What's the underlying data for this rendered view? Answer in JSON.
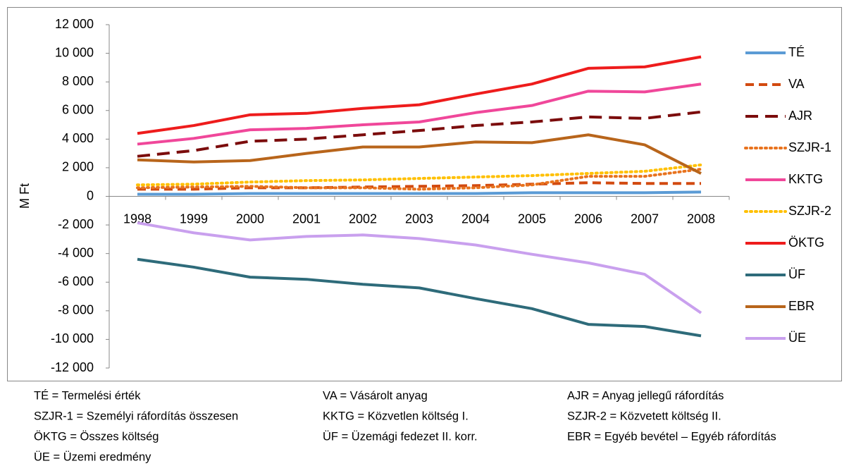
{
  "chart_data": {
    "type": "line",
    "y_label": "M Ft",
    "categories": [
      "1998",
      "1999",
      "2000",
      "2001",
      "2002",
      "2003",
      "2004",
      "2005",
      "2006",
      "2007",
      "2008"
    ],
    "ylim": [
      -12000,
      12000
    ],
    "yticks": [
      {
        "value": 12000,
        "label": "12 000"
      },
      {
        "value": 10000,
        "label": "10 000"
      },
      {
        "value": 8000,
        "label": "8 000"
      },
      {
        "value": 6000,
        "label": "6 000"
      },
      {
        "value": 4000,
        "label": "4 000"
      },
      {
        "value": 2000,
        "label": "2 000"
      },
      0,
      {
        "value": -2000,
        "label": "-2 000"
      },
      {
        "value": -4000,
        "label": "-4 000"
      },
      {
        "value": -6000,
        "label": "-6 000"
      },
      {
        "value": -8000,
        "label": "-8 000"
      },
      {
        "value": -10000,
        "label": "-10 000"
      },
      {
        "value": -12000,
        "label": "-12 000"
      }
    ],
    "grid": false,
    "legend": "right",
    "series": [
      {
        "name": "TÉ",
        "color": "#5b9bd5",
        "dash": "solid",
        "values": [
          150,
          150,
          200,
          200,
          200,
          200,
          200,
          250,
          250,
          250,
          300
        ]
      },
      {
        "name": "VA",
        "color": "#d24a10",
        "dash": "dashed",
        "values": [
          500,
          500,
          600,
          600,
          650,
          700,
          750,
          850,
          950,
          900,
          900
        ]
      },
      {
        "name": "AJR",
        "color": "#7b0c0c",
        "dash": "longdash",
        "values": [
          2800,
          3200,
          3850,
          4000,
          4300,
          4600,
          4950,
          5200,
          5550,
          5450,
          5900
        ]
      },
      {
        "name": "SZJR-1",
        "color": "#e8731e",
        "dash": "dotted",
        "values": [
          600,
          650,
          700,
          600,
          600,
          500,
          600,
          800,
          1400,
          1400,
          1900
        ]
      },
      {
        "name": "KKTG",
        "color": "#f0479a",
        "dash": "solid",
        "values": [
          3650,
          4050,
          4650,
          4750,
          5000,
          5200,
          5850,
          6350,
          7350,
          7300,
          7850
        ]
      },
      {
        "name": "SZJR-2",
        "color": "#ffc000",
        "dash": "dotted",
        "values": [
          800,
          850,
          1000,
          1100,
          1150,
          1250,
          1350,
          1450,
          1600,
          1750,
          2200
        ]
      },
      {
        "name": "ÖKTG",
        "color": "#ee1c1c",
        "dash": "solid",
        "values": [
          4400,
          4950,
          5700,
          5800,
          6150,
          6400,
          7150,
          7850,
          8950,
          9050,
          9750
        ]
      },
      {
        "name": "ÜF",
        "color": "#2e6b7a",
        "dash": "solid",
        "values": [
          -4400,
          -4950,
          -5650,
          -5800,
          -6150,
          -6400,
          -7150,
          -7850,
          -8950,
          -9100,
          -9750
        ]
      },
      {
        "name": "EBR",
        "color": "#b8651b",
        "dash": "solid",
        "values": [
          2550,
          2400,
          2500,
          3000,
          3450,
          3450,
          3800,
          3750,
          4300,
          3600,
          1600
        ]
      },
      {
        "name": "ÜE",
        "color": "#c9a0ee",
        "dash": "solid",
        "values": [
          -1850,
          -2550,
          -3050,
          -2800,
          -2700,
          -2950,
          -3400,
          -4050,
          -4650,
          -5450,
          -8150
        ]
      }
    ]
  },
  "notes": [
    "TÉ = Termelési érték",
    "VA = Vásárolt anyag",
    "AJR = Anyag jellegű ráfordítás",
    "SZJR-1 = Személyi ráfordítás összesen",
    "KKTG = Közvetlen költség I.",
    "SZJR-2 = Közvetett költség II.",
    "ÖKTG = Összes költség",
    "ÜF = Üzemági fedezet II. korr.",
    "EBR = Egyéb bevétel – Egyéb ráfordítás",
    "ÜE = Üzemi eredmény"
  ]
}
